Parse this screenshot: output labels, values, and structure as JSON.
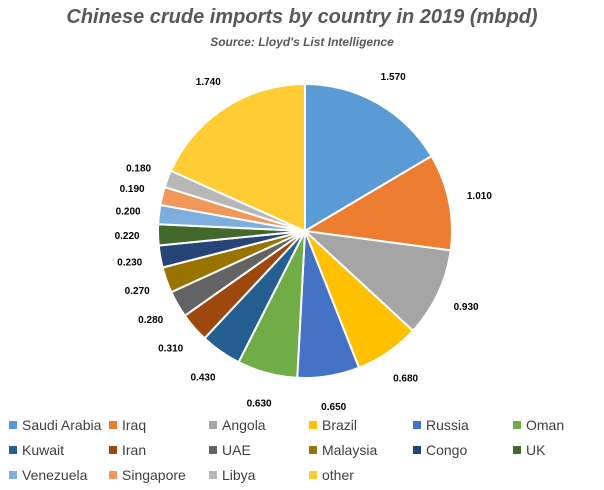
{
  "chart_data": {
    "type": "pie",
    "title": "Chinese crude imports by country in 2019 (mbpd)",
    "subtitle": "Source: Lloyd's List Intelligence",
    "legend_position": "bottom",
    "categories": [
      "Saudi Arabia",
      "Iraq",
      "Angola",
      "Brazil",
      "Russia",
      "Oman",
      "Kuwait",
      "Iran",
      "UAE",
      "Malaysia",
      "Congo",
      "UK",
      "Venezuela",
      "Singapore",
      "Libya",
      "other"
    ],
    "values": [
      1.57,
      1.01,
      0.93,
      0.68,
      0.65,
      0.63,
      0.43,
      0.31,
      0.28,
      0.27,
      0.23,
      0.22,
      0.2,
      0.19,
      0.18,
      1.74
    ],
    "labels": [
      "1.570",
      "1.010",
      "0.930",
      "0.680",
      "0.650",
      "0.630",
      "0.430",
      "0.310",
      "0.280",
      "0.270",
      "0.230",
      "0.220",
      "0.200",
      "0.190",
      "0.180",
      "1.740"
    ],
    "colors": [
      "#5B9BD5",
      "#ED7D31",
      "#A5A5A5",
      "#FFC000",
      "#4472C4",
      "#70AD47",
      "#255E91",
      "#9E480E",
      "#636363",
      "#997300",
      "#264478",
      "#43682B",
      "#7CAFDD",
      "#F1975A",
      "#B7B7B7",
      "#FFCD33"
    ]
  }
}
